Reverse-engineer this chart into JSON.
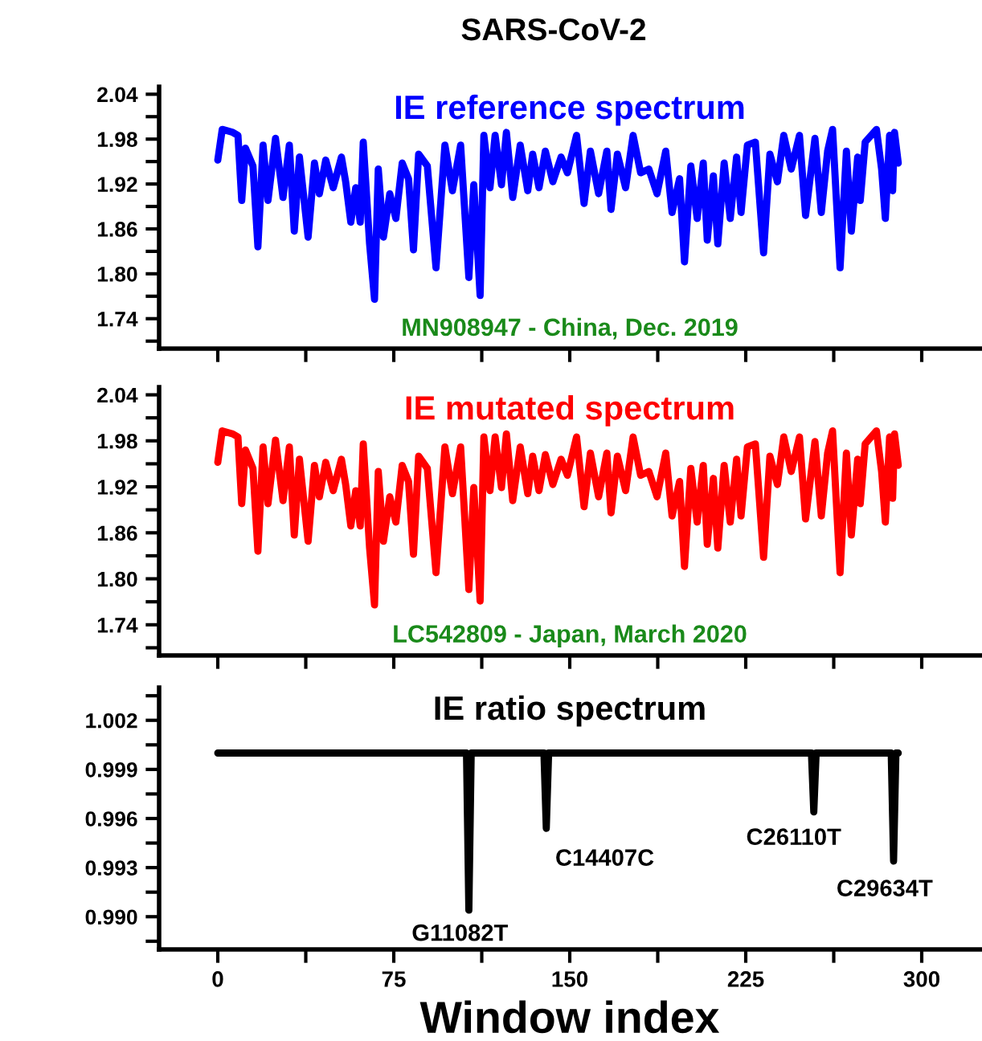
{
  "chart_data": [
    {
      "type": "line",
      "title": "SARS-CoV-2",
      "subtitle": "IE reference spectrum",
      "x": [
        0,
        1.9,
        6.4,
        8.6,
        10.2,
        11.8,
        15,
        17.1,
        19.3,
        21.4,
        24.6,
        27.8,
        30.5,
        32.6,
        34.8,
        38.5,
        41.2,
        43.3,
        46,
        49.2,
        52.7,
        54.5,
        56.7,
        58.8,
        60.7,
        62,
        64.7,
        66.8,
        68.4,
        70.6,
        73.3,
        75.9,
        78.6,
        81.3,
        83.4,
        85.6,
        89.3,
        93,
        96.8,
        100,
        103.5,
        107,
        109.1,
        111.8,
        113.4,
        116,
        118.2,
        120.9,
        123,
        125.7,
        128.9,
        132.1,
        134.2,
        136.9,
        139.6,
        142.8,
        146.3,
        149,
        152.9,
        156.1,
        158.8,
        162.3,
        165.8,
        167.6,
        170.3,
        173.8,
        177,
        180.2,
        183.7,
        187.2,
        190.9,
        193.6,
        196.8,
        198.9,
        201.6,
        204.3,
        206.9,
        208.6,
        211.2,
        213.1,
        215.8,
        218.4,
        221.1,
        223,
        225.7,
        229.1,
        232.6,
        235.3,
        238.5,
        241.2,
        244.4,
        247.9,
        250.5,
        254.5,
        257.2,
        259.9,
        262,
        265.2,
        267.9,
        270,
        272.7,
        273.8,
        275.9,
        280.7,
        282.9,
        284.5,
        286.3,
        287.6,
        288.4,
        290
      ],
      "series": [
        {
          "color": "#0000ff",
          "values": [
            1.952,
            1.993,
            1.989,
            1.985,
            1.898,
            1.968,
            1.944,
            1.836,
            1.972,
            1.898,
            1.981,
            1.902,
            1.972,
            1.857,
            1.956,
            1.849,
            1.948,
            1.907,
            1.952,
            1.915,
            1.956,
            1.923,
            1.869,
            1.915,
            1.869,
            1.976,
            1.84,
            1.766,
            1.94,
            1.849,
            1.907,
            1.874,
            1.948,
            1.927,
            1.832,
            1.96,
            1.944,
            1.808,
            1.972,
            1.911,
            1.972,
            1.795,
            1.919,
            1.771,
            1.985,
            1.915,
            1.985,
            1.919,
            1.989,
            1.902,
            1.972,
            1.911,
            1.96,
            1.915,
            1.964,
            1.923,
            1.956,
            1.935,
            1.985,
            1.894,
            1.964,
            1.907,
            1.964,
            1.886,
            1.96,
            1.915,
            1.985,
            1.935,
            1.94,
            1.907,
            1.964,
            1.882,
            1.927,
            1.816,
            1.944,
            1.874,
            1.948,
            1.845,
            1.931,
            1.84,
            1.948,
            1.874,
            1.956,
            1.882,
            1.972,
            1.976,
            1.828,
            1.96,
            1.923,
            1.985,
            1.94,
            1.985,
            1.878,
            1.981,
            1.882,
            1.964,
            1.993,
            1.808,
            1.964,
            1.857,
            1.956,
            1.898,
            1.976,
            1.993,
            1.94,
            1.874,
            1.985,
            1.911,
            1.989,
            1.948
          ]
        }
      ],
      "annotations": [
        "MN908947 - China, Dec. 2019"
      ],
      "xlim": [
        -25,
        325
      ],
      "xticks": [
        0,
        {
          "value": 37.5,
          "label": null
        },
        75,
        {
          "value": 112.5,
          "label": null
        },
        150,
        {
          "value": 187.5,
          "label": null
        },
        225,
        {
          "value": 262.5,
          "label": null
        },
        300
      ],
      "ylim": [
        1.7,
        2.05
      ],
      "yticks": [
        {
          "value": 1.71,
          "label": null
        },
        1.74,
        {
          "value": 1.77,
          "label": null
        },
        {
          "value": 1.8,
          "label": "1.80"
        },
        {
          "value": 1.83,
          "label": null
        },
        1.86,
        {
          "value": 1.89,
          "label": null
        },
        1.92,
        {
          "value": 1.95,
          "label": null
        },
        1.98,
        {
          "value": 2.01,
          "label": null
        },
        2.04
      ],
      "tick_labels": "y",
      "grid": false,
      "legend": false,
      "line_style": "solid",
      "marker": "none"
    },
    {
      "type": "line",
      "subtitle": "IE mutated spectrum",
      "x": [
        0,
        1.9,
        6.4,
        8.6,
        10.2,
        11.8,
        15,
        17.1,
        19.3,
        21.4,
        24.6,
        27.8,
        30.5,
        32.6,
        34.8,
        38.5,
        41.2,
        43.3,
        46,
        49.2,
        52.7,
        54.5,
        56.7,
        58.8,
        60.7,
        62,
        64.7,
        66.8,
        68.4,
        70.6,
        73.3,
        75.9,
        78.6,
        81.3,
        83.4,
        85.6,
        89.3,
        93,
        96.8,
        100,
        103.5,
        107,
        109.1,
        111.8,
        113.4,
        116,
        118.2,
        120.9,
        123,
        125.7,
        128.9,
        132.1,
        134.2,
        136.9,
        139.6,
        142.8,
        146.3,
        149,
        152.9,
        156.1,
        158.8,
        162.3,
        165.8,
        167.6,
        170.3,
        173.8,
        177,
        180.2,
        183.7,
        187.2,
        190.9,
        193.6,
        196.8,
        198.9,
        201.6,
        204.3,
        206.9,
        208.6,
        211.2,
        213.1,
        215.8,
        218.4,
        221.1,
        223,
        225.7,
        229.1,
        232.6,
        235.3,
        238.5,
        241.2,
        244.4,
        247.9,
        250.5,
        254.5,
        257.2,
        259.9,
        262,
        265.2,
        267.9,
        270,
        272.7,
        273.8,
        275.9,
        280.7,
        282.9,
        284.5,
        286.3,
        287.6,
        288.4,
        290
      ],
      "series": [
        {
          "color": "#ff0000",
          "values": [
            1.952,
            1.993,
            1.989,
            1.985,
            1.898,
            1.968,
            1.944,
            1.836,
            1.972,
            1.898,
            1.981,
            1.902,
            1.972,
            1.857,
            1.956,
            1.849,
            1.948,
            1.907,
            1.952,
            1.915,
            1.956,
            1.923,
            1.869,
            1.915,
            1.869,
            1.976,
            1.84,
            1.766,
            1.94,
            1.849,
            1.907,
            1.874,
            1.948,
            1.927,
            1.832,
            1.96,
            1.944,
            1.808,
            1.972,
            1.911,
            1.972,
            1.786,
            1.919,
            1.771,
            1.985,
            1.915,
            1.985,
            1.919,
            1.989,
            1.902,
            1.972,
            1.911,
            1.96,
            1.915,
            1.962,
            1.923,
            1.956,
            1.935,
            1.985,
            1.894,
            1.964,
            1.907,
            1.964,
            1.886,
            1.96,
            1.915,
            1.985,
            1.935,
            1.94,
            1.907,
            1.964,
            1.882,
            1.927,
            1.816,
            1.944,
            1.874,
            1.948,
            1.845,
            1.931,
            1.84,
            1.948,
            1.874,
            1.956,
            1.882,
            1.972,
            1.976,
            1.828,
            1.96,
            1.923,
            1.985,
            1.94,
            1.985,
            1.878,
            1.979,
            1.882,
            1.964,
            1.993,
            1.808,
            1.964,
            1.857,
            1.956,
            1.898,
            1.976,
            1.993,
            1.94,
            1.874,
            1.985,
            1.905,
            1.989,
            1.948
          ]
        }
      ],
      "annotations": [
        "LC542809 - Japan, March 2020"
      ],
      "xlim": [
        -25,
        325
      ],
      "xticks": [
        0,
        {
          "value": 37.5,
          "label": null
        },
        75,
        {
          "value": 112.5,
          "label": null
        },
        150,
        {
          "value": 187.5,
          "label": null
        },
        225,
        {
          "value": 262.5,
          "label": null
        },
        300
      ],
      "ylim": [
        1.7,
        2.05
      ],
      "yticks": [
        {
          "value": 1.71,
          "label": null
        },
        1.74,
        {
          "value": 1.77,
          "label": null
        },
        {
          "value": 1.8,
          "label": "1.80"
        },
        {
          "value": 1.83,
          "label": null
        },
        1.86,
        {
          "value": 1.89,
          "label": null
        },
        1.92,
        {
          "value": 1.95,
          "label": null
        },
        1.98,
        {
          "value": 2.01,
          "label": null
        },
        2.04
      ],
      "tick_labels": "y",
      "grid": false,
      "legend": false,
      "line_style": "solid",
      "marker": "none"
    },
    {
      "type": "line",
      "subtitle": "IE ratio spectrum",
      "xlabel": "Window index",
      "x": [
        0,
        106,
        107,
        108,
        139,
        140,
        141,
        253,
        254,
        255,
        287,
        288,
        289,
        290
      ],
      "series": [
        {
          "color": "#000000",
          "values": [
            1.0,
            1.0,
            0.9904,
            1.0,
            1.0,
            0.9954,
            1.0,
            1.0,
            0.9964,
            1.0,
            1.0,
            0.9934,
            1.0,
            1.0
          ]
        }
      ],
      "annotations": [
        {
          "text": "G11082T",
          "x": 107,
          "y": 0.9904
        },
        {
          "text": "C14407C",
          "x": 140,
          "y": 0.9954
        },
        {
          "text": "C26110T",
          "x": 254,
          "y": 0.9964
        },
        {
          "text": "C29634T",
          "x": 288,
          "y": 0.9934
        }
      ],
      "xlim": [
        -25,
        325
      ],
      "xticks": [
        0,
        {
          "value": 37.5,
          "label": null
        },
        75,
        {
          "value": 112.5,
          "label": null
        },
        150,
        {
          "value": 187.5,
          "label": null
        },
        225,
        {
          "value": 262.5,
          "label": null
        },
        300
      ],
      "ylim": [
        0.988,
        1.004
      ],
      "yticks": [
        {
          "value": 0.9885,
          "label": null
        },
        {
          "value": 0.99,
          "label": "0.990"
        },
        {
          "value": 0.9915,
          "label": null
        },
        0.993,
        {
          "value": 0.9945,
          "label": null
        },
        0.996,
        {
          "value": 0.9975,
          "label": null
        },
        0.999,
        {
          "value": 1.0005,
          "label": null
        },
        1.002,
        {
          "value": 1.0035,
          "label": null
        }
      ],
      "grid": false,
      "legend": false,
      "line_style": "solid",
      "marker": "none"
    }
  ]
}
